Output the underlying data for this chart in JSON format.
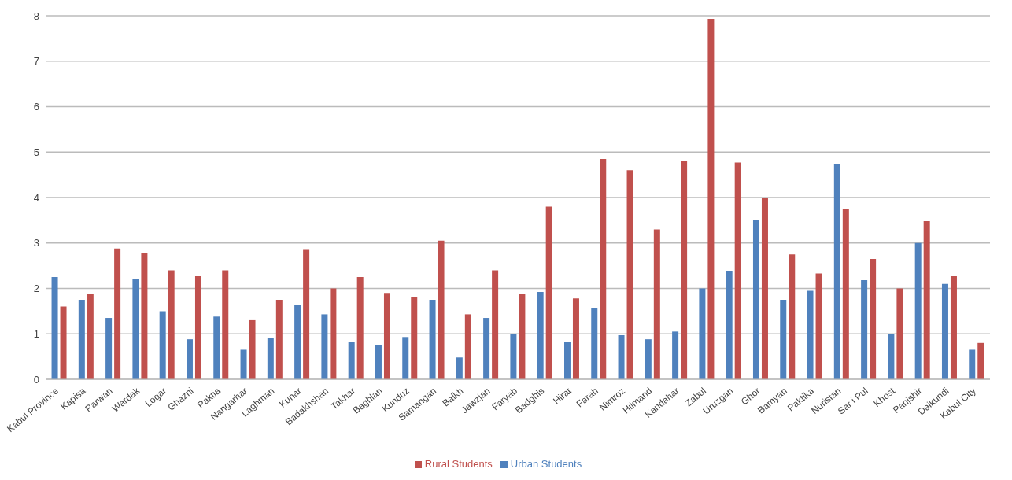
{
  "chart_data": {
    "type": "bar",
    "categories": [
      "Kabul Province",
      "Kapisa",
      "Parwan",
      "Wardak",
      "Logar",
      "Ghazni",
      "Paktia",
      "Nangarhar",
      "Laghman",
      "Kunar",
      "Badakhshan",
      "Takhar",
      "Baghlan",
      "Kunduz",
      "Samangan",
      "Balkh",
      "Jawzjan",
      "Faryab",
      "Badghis",
      "Hirat",
      "Farah",
      "Nimroz",
      "Hilmand",
      "Kandahar",
      "Zabul",
      "Uruzgan",
      "Ghor",
      "Bamyan",
      "Paktika",
      "Nuristan",
      "Sar i Pul",
      "Khost",
      "Panjshir",
      "Daikundi",
      "Kabul City"
    ],
    "series": [
      {
        "name": "Urban Students",
        "color": "#4f81bd",
        "values": [
          2.25,
          1.75,
          1.35,
          2.2,
          1.5,
          0.88,
          1.38,
          0.65,
          0.9,
          1.63,
          1.43,
          0.82,
          0.75,
          0.93,
          1.75,
          0.48,
          1.35,
          1.0,
          1.92,
          0.82,
          1.57,
          0.97,
          0.88,
          1.05,
          2.0,
          2.38,
          3.5,
          1.75,
          1.95,
          4.73,
          2.18,
          1.0,
          3.0,
          2.1,
          0.65
        ]
      },
      {
        "name": "Rural Students",
        "color": "#c0504d",
        "values": [
          1.6,
          1.87,
          2.88,
          2.77,
          2.4,
          2.27,
          2.4,
          1.3,
          1.75,
          2.85,
          2.0,
          2.25,
          1.9,
          1.8,
          3.05,
          1.43,
          2.4,
          1.87,
          3.8,
          1.78,
          4.85,
          4.6,
          3.3,
          4.8,
          7.93,
          4.77,
          4.0,
          2.75,
          2.33,
          3.75,
          2.65,
          2.0,
          3.48,
          2.27,
          0.8
        ]
      }
    ],
    "ylim": [
      0,
      8
    ],
    "yticks": [
      0,
      1,
      2,
      3,
      4,
      5,
      6,
      7,
      8
    ],
    "grid": "y",
    "legend": "bottom"
  }
}
